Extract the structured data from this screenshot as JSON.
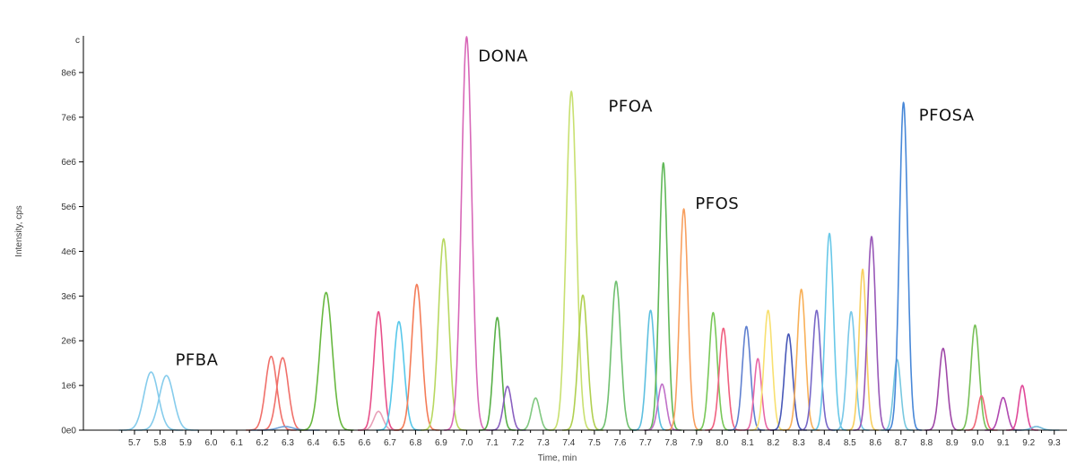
{
  "chart_data": {
    "type": "line",
    "title": "",
    "xlabel": "Time, min",
    "ylabel": "Intensity, cps",
    "xlim": [
      5.5,
      9.35
    ],
    "ylim": [
      0,
      8900000
    ],
    "grid": false,
    "x_ticks": [
      "5.7",
      "5.8",
      "5.9",
      "6.0",
      "6.1",
      "6.2",
      "6.3",
      "6.4",
      "6.5",
      "6.6",
      "6.7",
      "6.8",
      "6.9",
      "7.0",
      "7.1",
      "7.2",
      "7.3",
      "7.4",
      "7.5",
      "7.6",
      "7.7",
      "7.8",
      "7.9",
      "8.0",
      "8.1",
      "8.2",
      "8.3",
      "8.4",
      "8.5",
      "8.6",
      "8.7",
      "8.8",
      "8.9",
      "9.0",
      "9.1",
      "9.2",
      "9.3"
    ],
    "y_ticks": [
      {
        "value": 0,
        "label": "0e0"
      },
      {
        "value": 1000000,
        "label": "1e6"
      },
      {
        "value": 2000000,
        "label": "2e6"
      },
      {
        "value": 3000000,
        "label": "3e6"
      },
      {
        "value": 4000000,
        "label": "4e6"
      },
      {
        "value": 5000000,
        "label": "5e6"
      },
      {
        "value": 6000000,
        "label": "6e6"
      },
      {
        "value": 7000000,
        "label": "7e6"
      },
      {
        "value": 8000000,
        "label": "8e6"
      }
    ],
    "y_top_marker": "c",
    "peaks": [
      {
        "rt": 5.765,
        "height": 1300000,
        "width": 0.028,
        "color": "#86ccec"
      },
      {
        "rt": 5.825,
        "height": 1220000,
        "width": 0.028,
        "color": "#86ccec"
      },
      {
        "rt": 6.235,
        "height": 1650000,
        "width": 0.022,
        "color": "#f0706a"
      },
      {
        "rt": 6.28,
        "height": 1620000,
        "width": 0.022,
        "color": "#f0706a"
      },
      {
        "rt": 6.29,
        "height": 80000,
        "width": 0.03,
        "color": "#6fa0d8"
      },
      {
        "rt": 6.45,
        "height": 3080000,
        "width": 0.024,
        "color": "#68b840"
      },
      {
        "rt": 6.655,
        "height": 2650000,
        "width": 0.018,
        "color": "#e8508a"
      },
      {
        "rt": 6.655,
        "height": 420000,
        "width": 0.018,
        "color": "#e8a0b8"
      },
      {
        "rt": 6.735,
        "height": 2430000,
        "width": 0.02,
        "color": "#58c8ea"
      },
      {
        "rt": 6.805,
        "height": 3260000,
        "width": 0.02,
        "color": "#f47c58"
      },
      {
        "rt": 6.91,
        "height": 4280000,
        "width": 0.02,
        "color": "#b8d860"
      },
      {
        "rt": 7.0,
        "height": 8800000,
        "width": 0.02,
        "color": "#d868b8"
      },
      {
        "rt": 7.12,
        "height": 2520000,
        "width": 0.016,
        "color": "#58b048"
      },
      {
        "rt": 7.16,
        "height": 980000,
        "width": 0.016,
        "color": "#8a60c0"
      },
      {
        "rt": 7.27,
        "height": 720000,
        "width": 0.016,
        "color": "#80c880"
      },
      {
        "rt": 7.41,
        "height": 7580000,
        "width": 0.02,
        "color": "#c8e070"
      },
      {
        "rt": 7.455,
        "height": 3020000,
        "width": 0.018,
        "color": "#b0d050"
      },
      {
        "rt": 7.585,
        "height": 3330000,
        "width": 0.018,
        "color": "#70c070"
      },
      {
        "rt": 7.72,
        "height": 2680000,
        "width": 0.016,
        "color": "#5ec0e0"
      },
      {
        "rt": 7.77,
        "height": 5980000,
        "width": 0.016,
        "color": "#60b858"
      },
      {
        "rt": 7.765,
        "height": 1030000,
        "width": 0.016,
        "color": "#c070c8"
      },
      {
        "rt": 7.85,
        "height": 4950000,
        "width": 0.016,
        "color": "#f8a060"
      },
      {
        "rt": 7.965,
        "height": 2630000,
        "width": 0.016,
        "color": "#78c858"
      },
      {
        "rt": 8.005,
        "height": 2280000,
        "width": 0.016,
        "color": "#f06080"
      },
      {
        "rt": 8.095,
        "height": 2320000,
        "width": 0.016,
        "color": "#6080d0"
      },
      {
        "rt": 8.14,
        "height": 1600000,
        "width": 0.014,
        "color": "#e868a8"
      },
      {
        "rt": 8.18,
        "height": 2680000,
        "width": 0.016,
        "color": "#f8e070"
      },
      {
        "rt": 8.26,
        "height": 2150000,
        "width": 0.016,
        "color": "#4858b8"
      },
      {
        "rt": 8.31,
        "height": 3150000,
        "width": 0.016,
        "color": "#f8b058"
      },
      {
        "rt": 8.37,
        "height": 2680000,
        "width": 0.016,
        "color": "#7868c8"
      },
      {
        "rt": 8.42,
        "height": 4400000,
        "width": 0.016,
        "color": "#68c8e8"
      },
      {
        "rt": 8.505,
        "height": 2650000,
        "width": 0.016,
        "color": "#78c8e8"
      },
      {
        "rt": 8.55,
        "height": 3600000,
        "width": 0.014,
        "color": "#f8d060"
      },
      {
        "rt": 8.585,
        "height": 4330000,
        "width": 0.016,
        "color": "#9858b8"
      },
      {
        "rt": 8.685,
        "height": 1580000,
        "width": 0.014,
        "color": "#78c8e0"
      },
      {
        "rt": 8.71,
        "height": 7330000,
        "width": 0.016,
        "color": "#4888d8"
      },
      {
        "rt": 8.865,
        "height": 1830000,
        "width": 0.016,
        "color": "#a048a8"
      },
      {
        "rt": 8.99,
        "height": 2350000,
        "width": 0.016,
        "color": "#78c058"
      },
      {
        "rt": 9.015,
        "height": 770000,
        "width": 0.014,
        "color": "#f06878"
      },
      {
        "rt": 9.1,
        "height": 730000,
        "width": 0.016,
        "color": "#b048b0"
      },
      {
        "rt": 9.175,
        "height": 1000000,
        "width": 0.014,
        "color": "#e04898"
      },
      {
        "rt": 9.23,
        "height": 80000,
        "width": 0.02,
        "color": "#70b8d8"
      }
    ],
    "annotations": [
      {
        "text": "PFBA",
        "x": 5.86,
        "y": 1450000
      },
      {
        "text": "DONA",
        "x": 7.045,
        "y": 8250000
      },
      {
        "text": "PFOA",
        "x": 7.555,
        "y": 7130000
      },
      {
        "text": "PFOS",
        "x": 7.895,
        "y": 4950000
      },
      {
        "text": "PFOSA",
        "x": 8.77,
        "y": 6930000
      }
    ]
  }
}
